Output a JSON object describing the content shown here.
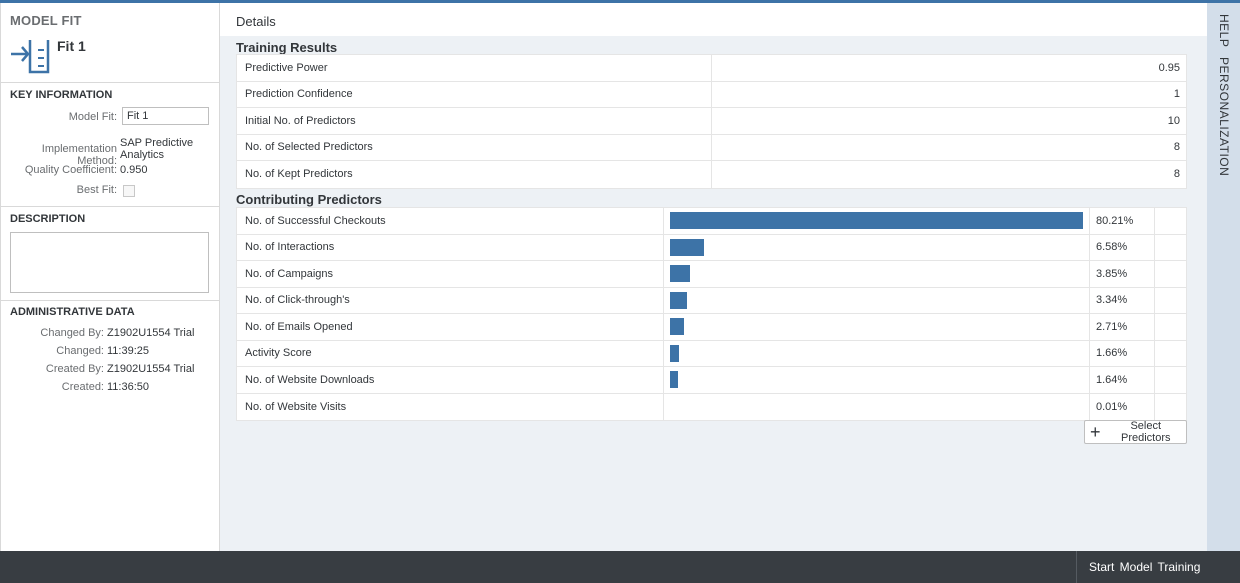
{
  "left": {
    "title": "MODEL FIT",
    "fit_name": "Fit 1",
    "key_info": {
      "heading": "KEY INFORMATION",
      "model_fit_label": "Model Fit:",
      "model_fit_value": "Fit 1",
      "impl_label": "Implementation Method:",
      "impl_value_line1": "SAP Predictive",
      "impl_value_line2": "Analytics",
      "quality_label": "Quality Coefficient:",
      "quality_value": "0.950",
      "best_fit_label": "Best Fit:"
    },
    "description": {
      "heading": "DESCRIPTION"
    },
    "admin": {
      "heading": "ADMINISTRATIVE DATA",
      "changed_by_label": "Changed By:",
      "changed_by_value": "Z1902U1554 Trial",
      "changed_label": "Changed:",
      "changed_value": "11:39:25",
      "created_by_label": "Created By:",
      "created_by_value": "Z1902U1554 Trial",
      "created_label": "Created:",
      "created_value": "11:36:50"
    }
  },
  "main": {
    "details_title": "Details",
    "training_title": "Training Results",
    "training_rows": [
      {
        "name": "Predictive Power",
        "value": "0.95"
      },
      {
        "name": "Prediction Confidence",
        "value": "1"
      },
      {
        "name": "Initial No. of Predictors",
        "value": "10"
      },
      {
        "name": "No. of Selected Predictors",
        "value": "8"
      },
      {
        "name": "No. of Kept Predictors",
        "value": "8"
      }
    ],
    "contrib_title": "Contributing Predictors",
    "contrib_rows": [
      {
        "name": "No. of Successful Checkouts",
        "pct": "80.21%",
        "value": 80.21
      },
      {
        "name": "No. of Interactions",
        "pct": "6.58%",
        "value": 6.58
      },
      {
        "name": "No. of Campaigns",
        "pct": "3.85%",
        "value": 3.85
      },
      {
        "name": "No. of Click-through's",
        "pct": "3.34%",
        "value": 3.34
      },
      {
        "name": "No. of Emails Opened",
        "pct": "2.71%",
        "value": 2.71
      },
      {
        "name": "Activity Score",
        "pct": "1.66%",
        "value": 1.66
      },
      {
        "name": "No. of Website Downloads",
        "pct": "1.64%",
        "value": 1.64
      },
      {
        "name": "No. of Website Visits",
        "pct": "0.01%",
        "value": 0.01
      }
    ],
    "select_predictors_label": "Select Predictors"
  },
  "rightbar": {
    "help": "HELP",
    "personalization": "PERSONALIZATION"
  },
  "footer": {
    "start_label": "Start Model Training"
  },
  "colors": {
    "accent": "#3d73a7",
    "footer_bg": "#383d42",
    "rightbar_bg": "#d3deea"
  }
}
